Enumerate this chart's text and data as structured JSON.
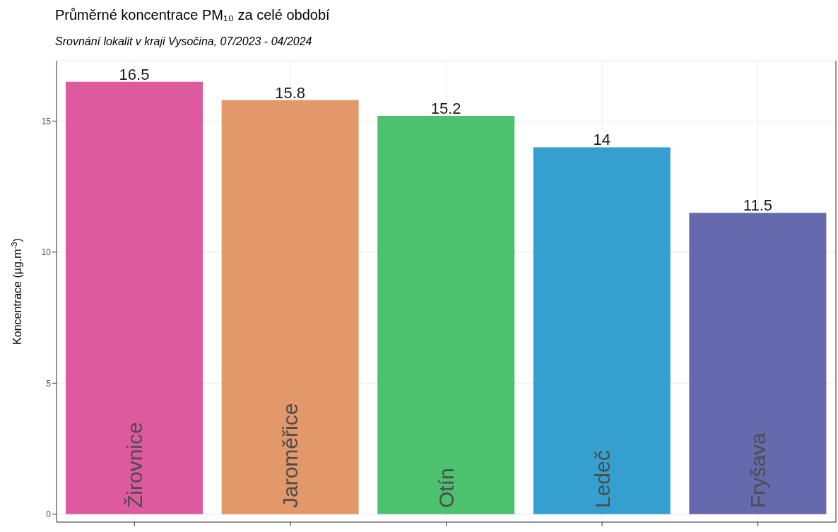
{
  "chart_data": {
    "type": "bar",
    "title": "Průměrné koncentrace PM₁₀ za celé období",
    "subtitle": "Srovnání lokalit v kraji Vysočina, 07/2023 - 04/2024",
    "ylabel": "Koncentrace (µg.m$^{-3}$)",
    "categories": [
      "Žirovnice",
      "Jaroměřice",
      "Otín",
      "Ledeč",
      "Fryšava"
    ],
    "values": [
      16.5,
      15.8,
      15.2,
      14,
      11.5
    ],
    "colors": [
      "#dd5a9e",
      "#e29868",
      "#4cc26e",
      "#35a0cf",
      "#6569ad"
    ],
    "ylim": [
      -0.3,
      17.3
    ],
    "yticks": [
      0,
      5,
      10,
      15
    ],
    "grid": true,
    "data_labels": true
  }
}
